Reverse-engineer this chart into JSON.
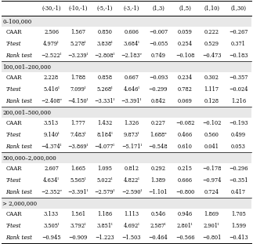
{
  "columns": [
    "(-30,-1)",
    "(-10,-1)",
    "(-5,-1)",
    "(-3,-1)",
    "(1,3)",
    "(1,5)",
    "(1,10)",
    "(1,30)"
  ],
  "sections": [
    {
      "header": "0–100,000",
      "rows": [
        {
          "label": "CAAR",
          "values": [
            "2.506",
            "1.567",
            "0.850",
            "0.606",
            "−0.007",
            "0.059",
            "0.222",
            "−0.267"
          ]
        },
        {
          "label": "T-test",
          "values": [
            "4.979ˡ",
            "5.278ˡ",
            "3.838ˡ",
            "3.684ˡ",
            "−0.055",
            "0.254",
            "0.529",
            "0.371"
          ]
        },
        {
          "label": "Rank test",
          "values": [
            "−2.522ˡ",
            "−3.239ˡ",
            "−2.808ˡ",
            "−2.183ᵛ",
            "0.749",
            "−0.108",
            "−0.473",
            "−0.183"
          ]
        }
      ]
    },
    {
      "header": "100,001–200,000",
      "rows": [
        {
          "label": "CAAR",
          "values": [
            "2.228",
            "1.788",
            "0.858",
            "0.667",
            "−0.093",
            "0.234",
            "0.302",
            "−0.357"
          ]
        },
        {
          "label": "T-test",
          "values": [
            "5.416ˡ",
            "7.099ˡ",
            "5.268ˡ",
            "4.646ˡ",
            "−0.299",
            "0.782",
            "1.117",
            "−0.024"
          ]
        },
        {
          "label": "Rank test",
          "values": [
            "−2.408ᵛ",
            "−4.150ˡ",
            "−3.331ˡ",
            "−3.391ˡ",
            "0.842",
            "0.069",
            "0.128",
            "1.216"
          ]
        }
      ]
    },
    {
      "header": "200,001–500,000",
      "rows": [
        {
          "label": "CAAR",
          "values": [
            "3.513",
            "1.777",
            "1.432",
            "1.326",
            "0.227",
            "−0.082",
            "−0.102",
            "−0.193"
          ]
        },
        {
          "label": "T-test",
          "values": [
            "9.140ˡ",
            "7.483ˡ",
            "8.184ˡ",
            "9.873ˡ",
            "1.688ˣ",
            "0.466",
            "0.560",
            "0.499"
          ]
        },
        {
          "label": "Rank test",
          "values": [
            "−4.374ˡ",
            "−3.869ˡ",
            "−4.077ˡ",
            "−5.171ˡ",
            "−0.548",
            "0.610",
            "0.041",
            "0.053"
          ]
        }
      ]
    },
    {
      "header": "500,000–2,000,000",
      "rows": [
        {
          "label": "CAAR",
          "values": [
            "2.607",
            "1.665",
            "1.095",
            "0.812",
            "0.292",
            "0.215",
            "−0.178",
            "−0.296"
          ]
        },
        {
          "label": "T-test",
          "values": [
            "4.634ˡ",
            "5.565ˡ",
            "5.022ˡ",
            "4.822ˡ",
            "1.389",
            "0.666",
            "−0.974",
            "−0.351"
          ]
        },
        {
          "label": "Rank test",
          "values": [
            "−2.352ᵛ",
            "−3.391ˡ",
            "−2.579ˡ",
            "−2.590ˡ",
            "−1.101",
            "−0.800",
            "0.724",
            "0.417"
          ]
        }
      ]
    },
    {
      "header": "> 2,000,000",
      "rows": [
        {
          "label": "CAAR",
          "values": [
            "3.133",
            "1.561",
            "1.186",
            "1.113",
            "0.546",
            "0.946",
            "1.869",
            "1.705"
          ]
        },
        {
          "label": "T-test",
          "values": [
            "3.505ˡ",
            "3.792ˡ",
            "3.851ˡ",
            "4.692ˡ",
            "2.587ˡ",
            "2.801ˡ",
            "2.901ˡ",
            "1.599"
          ]
        },
        {
          "label": "Rank test",
          "values": [
            "−0.945",
            "−0.909",
            "−1.223",
            "−1.503",
            "−0.464",
            "−0.566",
            "−0.801",
            "−0.413"
          ]
        }
      ]
    }
  ],
  "bg_color": "#ffffff",
  "line_color": "#000000",
  "section_header_bg": "#e8e8e8",
  "font_size": 5.0,
  "col_header_fs": 4.8
}
